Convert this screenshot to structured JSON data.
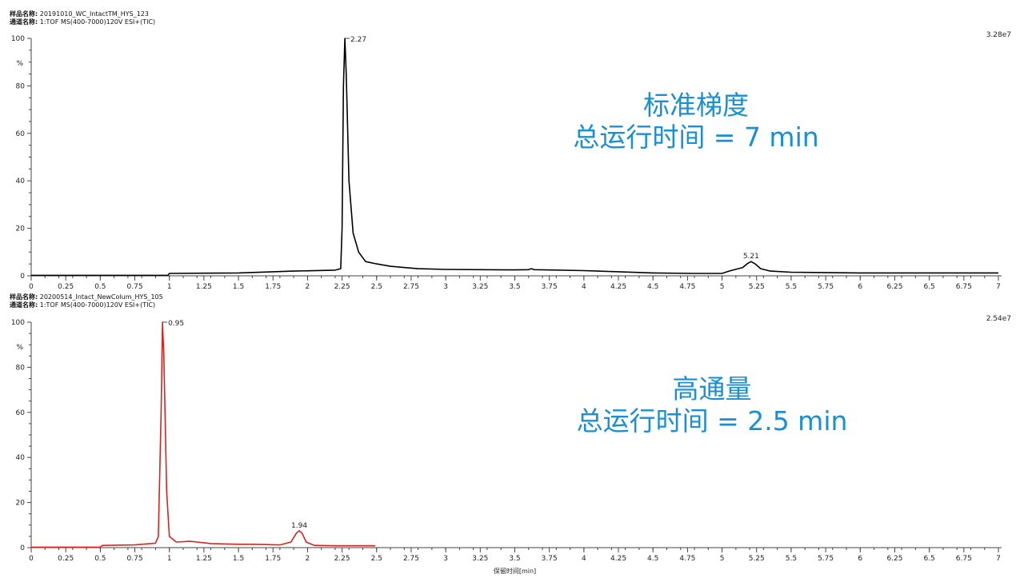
{
  "panels": {
    "top": {
      "sample_label": "样品名称:",
      "sample_value": "20191010_WC_IntactTM_HYS_123",
      "channel_label": "通道名称:",
      "channel_value": "1:TOF MS(400-7000)120V ESI+(TIC)",
      "scale_max": "3.28e7",
      "note_line1": "标准梯度",
      "note_line2": "总运行时间 = 7 min"
    },
    "bottom": {
      "sample_label": "样品名称:",
      "sample_value": "20200514_Intact_NewColum_HYS_105",
      "channel_label": "通道名称:",
      "channel_value": "1:TOF MS(400-7000)120V ESI+(TIC)",
      "scale_max": "2.54e7",
      "note_line1": "高通量",
      "note_line2": "总运行时间 = 2.5 min"
    }
  },
  "chart_data": [
    {
      "type": "line",
      "xlabel": "",
      "ylabel": "%",
      "xlim": [
        0,
        7
      ],
      "ylim": [
        0,
        100
      ],
      "x_ticks": [
        "0",
        "0.25",
        "0.5",
        "0.75",
        "1",
        "1.25",
        "1.5",
        "1.75",
        "2",
        "2.25",
        "2.5",
        "2.75",
        "3",
        "3.25",
        "3.5",
        "3.75",
        "4",
        "4.25",
        "4.5",
        "4.75",
        "5",
        "5.25",
        "5.5",
        "5.75",
        "6",
        "6.25",
        "6.5",
        "6.75",
        "7"
      ],
      "y_ticks": [
        "0",
        "20",
        "40",
        "60",
        "80",
        "100"
      ],
      "color": "#000000",
      "series": [
        {
          "x": [
            0,
            0.99,
            1.0,
            1.5,
            1.9,
            2.2,
            2.24,
            2.25,
            2.26,
            2.27,
            2.28,
            2.3,
            2.33,
            2.37,
            2.42,
            2.5,
            2.6,
            2.8,
            3.0,
            3.5,
            3.6,
            3.62,
            3.64,
            4.0,
            4.1,
            4.5,
            4.8,
            5.0,
            5.05,
            5.15,
            5.18,
            5.21,
            5.24,
            5.28,
            5.35,
            5.5,
            6.0,
            7.0
          ],
          "y": [
            0.2,
            0.2,
            1.0,
            1.2,
            2.0,
            2.4,
            3.0,
            20,
            80,
            100,
            85,
            40,
            18,
            10,
            6,
            5,
            4,
            3,
            2.7,
            2.5,
            2.6,
            3.0,
            2.6,
            2.2,
            2.0,
            1.2,
            1.0,
            1.0,
            2.0,
            3.5,
            5.0,
            6.0,
            5.0,
            3.0,
            2.0,
            1.5,
            1.2,
            1.2
          ]
        }
      ],
      "annotations": [
        {
          "x": 2.27,
          "y": 100,
          "label": "2.27"
        },
        {
          "x": 5.21,
          "y": 6,
          "label": "5.21"
        }
      ]
    },
    {
      "type": "line",
      "xlabel": "保留时间[min]",
      "ylabel": "%",
      "xlim": [
        0,
        7
      ],
      "ylim": [
        0,
        100
      ],
      "x_ticks": [
        "0",
        "0.25",
        "0.5",
        "0.75",
        "1",
        "1.25",
        "1.5",
        "1.75",
        "2",
        "2.25",
        "2.5",
        "2.75",
        "3",
        "3.25",
        "3.5",
        "3.75",
        "4",
        "4.25",
        "4.5",
        "4.75",
        "5",
        "5.25",
        "5.5",
        "5.75",
        "6",
        "6.25",
        "6.5",
        "6.75",
        "7"
      ],
      "y_ticks": [
        "0",
        "20",
        "40",
        "60",
        "80",
        "100"
      ],
      "color": "#d9231f",
      "series": [
        {
          "x": [
            0,
            0.5,
            0.51,
            0.52,
            0.75,
            0.9,
            0.92,
            0.94,
            0.95,
            0.96,
            0.98,
            1.0,
            1.05,
            1.15,
            1.2,
            1.3,
            1.5,
            1.6,
            1.8,
            1.88,
            1.92,
            1.94,
            1.96,
            1.99,
            2.05,
            2.2,
            2.49
          ],
          "y": [
            0.2,
            0.2,
            0.8,
            1.0,
            1.2,
            2.0,
            5.0,
            60,
            100,
            85,
            25,
            5,
            2.5,
            2.8,
            2.5,
            1.8,
            1.5,
            1.5,
            1.2,
            2.5,
            6.5,
            7.5,
            6.5,
            2.5,
            1.0,
            0.8,
            0.8
          ]
        }
      ],
      "annotations": [
        {
          "x": 0.95,
          "y": 100,
          "label": "0.95"
        },
        {
          "x": 1.94,
          "y": 7.5,
          "label": "1.94"
        }
      ]
    }
  ]
}
